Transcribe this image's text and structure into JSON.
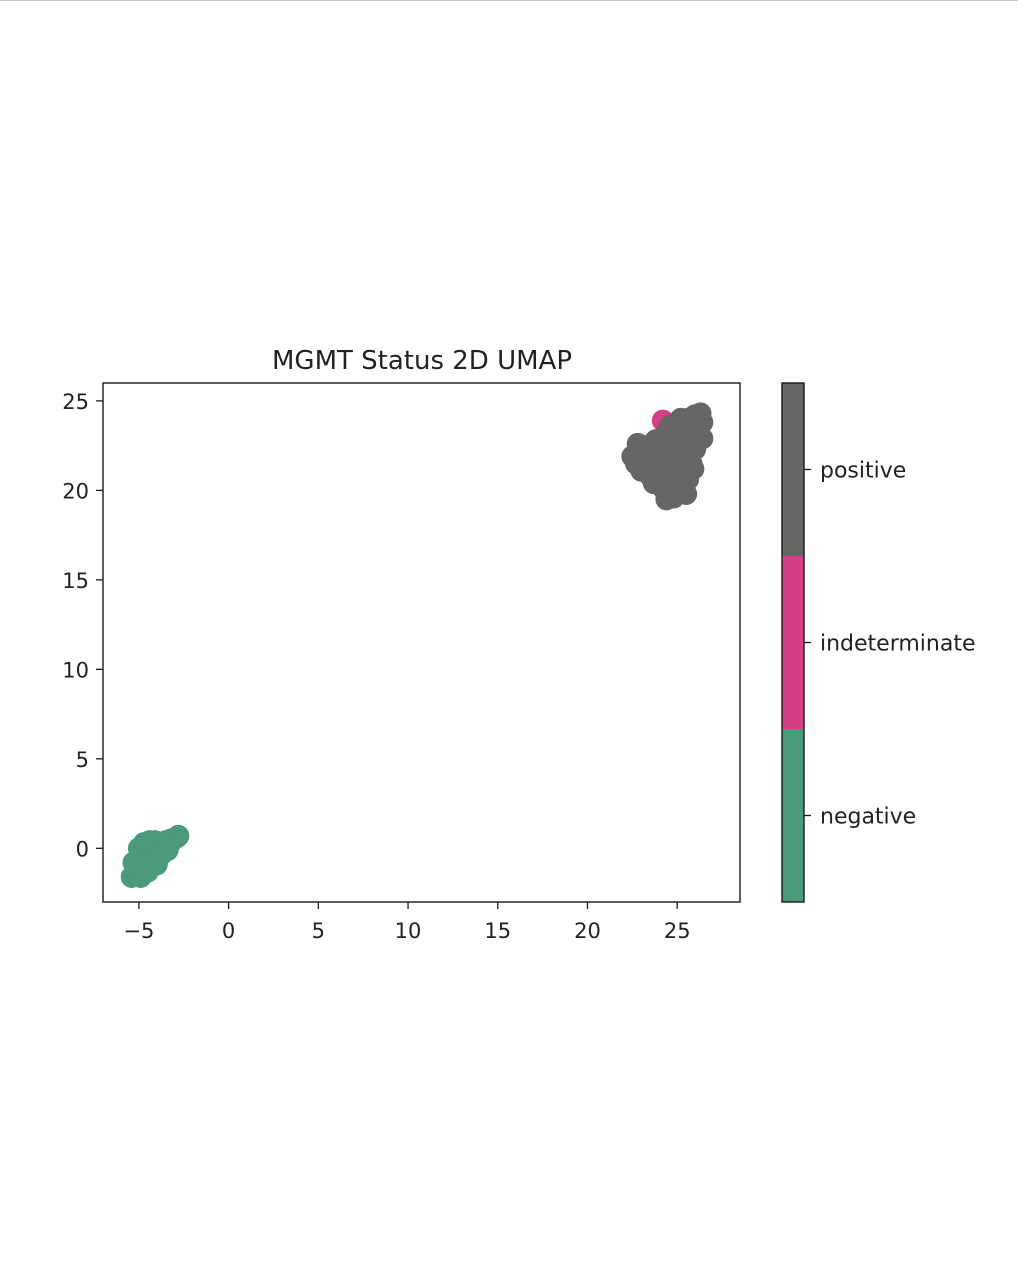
{
  "chart_data": {
    "type": "scatter",
    "title": "MGMT Status 2D UMAP",
    "xlabel": "",
    "ylabel": "",
    "xlim": [
      -7,
      28.5
    ],
    "ylim": [
      -3,
      26
    ],
    "xticks": [
      -5,
      0,
      5,
      10,
      15,
      20,
      25
    ],
    "xtick_labels": [
      "−5",
      "0",
      "5",
      "10",
      "15",
      "20",
      "25"
    ],
    "yticks": [
      0,
      5,
      10,
      15,
      20,
      25
    ],
    "ytick_labels": [
      "0",
      "5",
      "10",
      "15",
      "20",
      "25"
    ],
    "grid": false,
    "colorbar": {
      "categories": [
        "negative",
        "indeterminate",
        "positive"
      ],
      "colors": [
        "#4a9a7b",
        "#d63f88",
        "#666666"
      ]
    },
    "series": [
      {
        "category": "negative",
        "color": "#4a9a7b",
        "points": [
          [
            -5.1,
            -1.5
          ],
          [
            -5.4,
            -1.6
          ],
          [
            -5.0,
            -1.3
          ],
          [
            -4.8,
            -1.2
          ],
          [
            -5.2,
            -1.1
          ],
          [
            -4.9,
            -0.9
          ],
          [
            -4.6,
            -1.0
          ],
          [
            -5.0,
            -0.6
          ],
          [
            -4.7,
            -0.5
          ],
          [
            -4.4,
            -0.7
          ],
          [
            -4.8,
            -0.2
          ],
          [
            -4.5,
            -0.2
          ],
          [
            -4.2,
            -0.4
          ],
          [
            -4.6,
            0.1
          ],
          [
            -4.3,
            0.1
          ],
          [
            -4.0,
            -0.1
          ],
          [
            -4.4,
            0.4
          ],
          [
            -4.1,
            0.4
          ],
          [
            -3.8,
            0.2
          ],
          [
            -3.6,
            0.0
          ],
          [
            -3.9,
            -0.5
          ],
          [
            -4.2,
            -0.8
          ],
          [
            -4.5,
            -1.3
          ],
          [
            -4.9,
            -1.6
          ],
          [
            -3.5,
            0.4
          ],
          [
            -3.2,
            0.5
          ],
          [
            -2.9,
            0.6
          ],
          [
            -2.8,
            0.7
          ],
          [
            -3.3,
            0.2
          ],
          [
            -3.7,
            -0.3
          ],
          [
            -5.0,
            0.0
          ],
          [
            -4.7,
            0.3
          ],
          [
            -5.3,
            -0.8
          ],
          [
            -4.0,
            -0.9
          ],
          [
            -3.4,
            -0.1
          ]
        ]
      },
      {
        "category": "indeterminate",
        "color": "#d63f88",
        "points": [
          [
            24.2,
            23.9
          ],
          [
            25.6,
            24.0
          ]
        ]
      },
      {
        "category": "positive",
        "color": "#666666",
        "points": [
          [
            22.5,
            21.9
          ],
          [
            22.9,
            22.2
          ],
          [
            22.7,
            21.5
          ],
          [
            23.2,
            21.8
          ],
          [
            23.4,
            22.5
          ],
          [
            23.0,
            21.1
          ],
          [
            23.5,
            20.8
          ],
          [
            23.8,
            21.3
          ],
          [
            24.0,
            22.0
          ],
          [
            23.8,
            22.8
          ],
          [
            24.3,
            23.1
          ],
          [
            24.5,
            22.4
          ],
          [
            24.2,
            21.5
          ],
          [
            24.0,
            20.6
          ],
          [
            24.3,
            20.0
          ],
          [
            24.4,
            19.5
          ],
          [
            24.7,
            19.9
          ],
          [
            24.8,
            20.8
          ],
          [
            25.0,
            21.7
          ],
          [
            24.9,
            22.7
          ],
          [
            25.2,
            23.2
          ],
          [
            25.5,
            22.9
          ],
          [
            25.4,
            22.0
          ],
          [
            25.3,
            21.0
          ],
          [
            25.1,
            20.2
          ],
          [
            24.8,
            19.6
          ],
          [
            25.6,
            20.6
          ],
          [
            25.8,
            21.5
          ],
          [
            26.0,
            22.3
          ],
          [
            25.8,
            23.5
          ],
          [
            26.2,
            23.0
          ],
          [
            26.4,
            23.8
          ],
          [
            26.3,
            24.3
          ],
          [
            26.0,
            24.2
          ],
          [
            25.7,
            23.9
          ],
          [
            26.4,
            22.9
          ],
          [
            23.6,
            22.2
          ],
          [
            24.6,
            23.6
          ],
          [
            25.2,
            24.0
          ],
          [
            22.8,
            22.6
          ],
          [
            24.1,
            21.2
          ],
          [
            25.9,
            21.2
          ],
          [
            25.5,
            19.8
          ],
          [
            23.7,
            20.4
          ]
        ]
      }
    ]
  }
}
